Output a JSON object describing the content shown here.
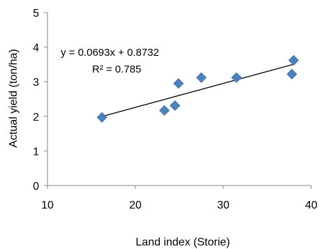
{
  "chart_data": {
    "type": "scatter",
    "title": "",
    "xlabel": "Land index (Storie)",
    "ylabel": "Actual yield (ton/ha)",
    "xlim": [
      10,
      40
    ],
    "ylim": [
      0,
      5
    ],
    "xticks": [
      10,
      20,
      30,
      40
    ],
    "yticks": [
      0,
      1,
      2,
      3,
      4,
      5
    ],
    "grid": false,
    "legend": "none",
    "series": [
      {
        "marker": "diamond",
        "color": "#4f81bd",
        "points": [
          {
            "x": 16.2,
            "y": 1.97
          },
          {
            "x": 23.3,
            "y": 2.17
          },
          {
            "x": 24.5,
            "y": 2.31
          },
          {
            "x": 24.9,
            "y": 2.95
          },
          {
            "x": 27.5,
            "y": 3.12
          },
          {
            "x": 31.5,
            "y": 3.12
          },
          {
            "x": 37.8,
            "y": 3.22
          },
          {
            "x": 38.0,
            "y": 3.62
          }
        ]
      }
    ],
    "trendline": {
      "type": "linear",
      "slope": 0.0693,
      "intercept": 0.8732,
      "x_range": [
        16.2,
        38.0
      ],
      "color": "#000000"
    },
    "annotations": {
      "equation": "y = 0.0693x + 0.8732",
      "r_squared": "R² = 0.785"
    }
  }
}
